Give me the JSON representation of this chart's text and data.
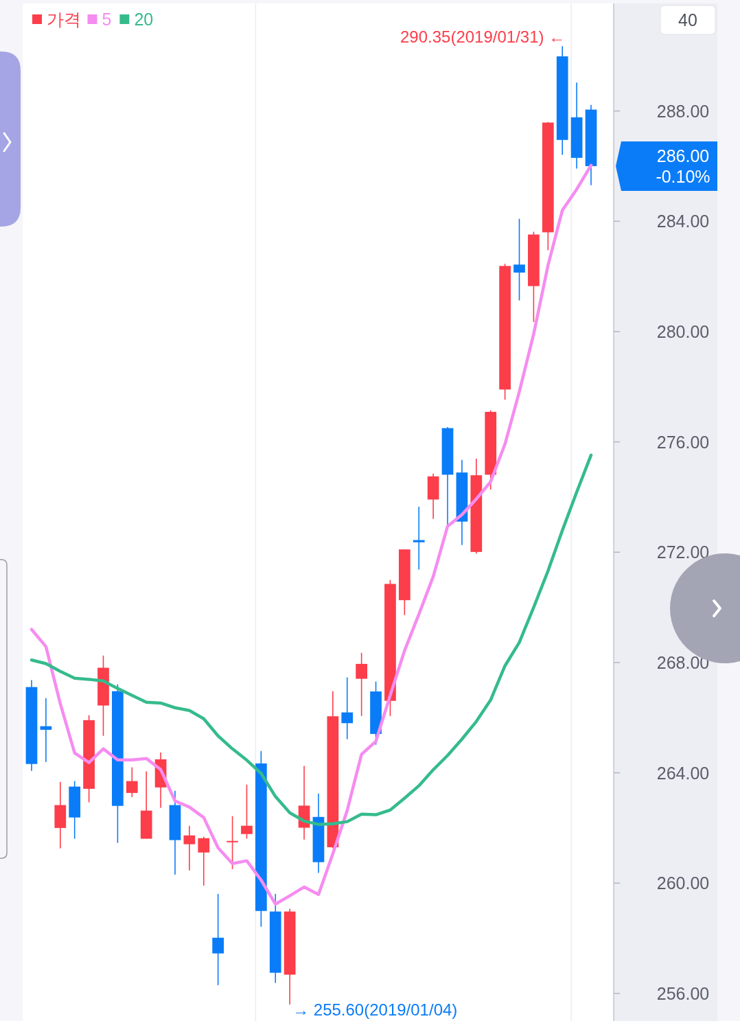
{
  "chart_data": {
    "type": "candlestick",
    "categories": [
      null,
      null,
      null,
      null,
      null,
      null,
      null,
      null,
      null,
      null,
      null,
      null,
      null,
      null,
      null,
      null,
      null,
      null,
      null,
      null,
      null,
      null,
      null,
      null,
      null,
      null,
      null,
      null,
      null,
      null,
      null,
      null,
      null,
      null,
      null,
      null,
      null,
      null,
      null,
      null
    ],
    "series": [
      {
        "name": "가격",
        "color": "#fc3d4a",
        "colors": [
          "#0a7cf8",
          "#0a7cf8",
          "#fc3d4a",
          "#0a7cf8",
          "#fc3d4a",
          "#fc3d4a",
          "#0a7cf8",
          "#fc3d4a",
          "#fc3d4a",
          "#fc3d4a",
          "#0a7cf8",
          "#fc3d4a",
          "#fc3d4a",
          "#0a7cf8",
          "#fc3d4a",
          "#fc3d4a",
          "#0a7cf8",
          "#0a7cf8",
          "#fc3d4a",
          "#fc3d4a",
          "#0a7cf8",
          "#fc3d4a",
          "#0a7cf8",
          "#fc3d4a",
          "#0a7cf8",
          "#fc3d4a",
          "#fc3d4a",
          "#0a7cf8",
          "#fc3d4a",
          "#0a7cf8",
          "#0a7cf8",
          "#fc3d4a",
          "#fc3d4a",
          "#fc3d4a",
          "#0a7cf8",
          "#fc3d4a",
          "#fc3d4a",
          "#0a7cf8",
          "#0a7cf8",
          "#0a7cf8"
        ],
        "ohlc": [
          [
            267.11,
            267.36,
            264.07,
            264.32
          ],
          [
            265.69,
            266.71,
            264.39,
            265.56
          ],
          [
            262.0,
            263.67,
            261.26,
            262.83
          ],
          [
            263.5,
            263.7,
            261.61,
            262.38
          ],
          [
            263.42,
            266.09,
            262.93,
            265.91
          ],
          [
            266.44,
            268.25,
            265.34,
            267.81
          ],
          [
            266.96,
            267.21,
            261.46,
            262.8
          ],
          [
            263.27,
            264.2,
            263.12,
            263.7
          ],
          [
            261.61,
            264.05,
            261.61,
            262.63
          ],
          [
            263.47,
            264.74,
            262.73,
            264.49
          ],
          [
            262.83,
            263.35,
            260.31,
            261.56
          ],
          [
            261.41,
            262.08,
            260.46,
            261.73
          ],
          [
            261.11,
            261.68,
            259.91,
            261.63
          ],
          [
            258.02,
            259.61,
            256.3,
            257.45
          ],
          [
            261.53,
            262.43,
            260.51,
            261.53
          ],
          [
            261.78,
            263.57,
            261.61,
            262.08
          ],
          [
            264.34,
            264.79,
            258.42,
            258.99
          ],
          [
            258.97,
            259.61,
            256.38,
            256.75
          ],
          [
            256.68,
            259.07,
            255.6,
            258.97
          ],
          [
            262.01,
            264.25,
            261.58,
            262.81
          ],
          [
            262.4,
            263.25,
            260.37,
            260.76
          ],
          [
            261.3,
            266.96,
            261.26,
            266.05
          ],
          [
            266.19,
            267.46,
            265.22,
            265.8
          ],
          [
            267.41,
            268.35,
            266.06,
            267.95
          ],
          [
            266.95,
            267.31,
            265.02,
            265.41
          ],
          [
            266.61,
            270.99,
            266.06,
            270.85
          ],
          [
            270.26,
            272.1,
            269.72,
            272.1
          ],
          [
            272.44,
            273.65,
            271.37,
            272.36
          ],
          [
            273.91,
            274.85,
            273.21,
            274.75
          ],
          [
            276.5,
            276.54,
            272.99,
            274.81
          ],
          [
            274.89,
            275.35,
            272.26,
            273.11
          ],
          [
            272.01,
            275.39,
            271.95,
            274.79
          ],
          [
            274.81,
            277.14,
            274.27,
            277.09
          ],
          [
            277.9,
            282.46,
            277.53,
            282.38
          ],
          [
            282.43,
            284.09,
            281.13,
            282.14
          ],
          [
            281.65,
            283.62,
            280.35,
            283.52
          ],
          [
            283.6,
            287.6,
            282.95,
            287.58
          ],
          [
            289.98,
            290.35,
            286.41,
            286.95
          ],
          [
            287.77,
            289.03,
            285.91,
            286.3
          ],
          [
            288.05,
            288.22,
            285.31,
            286.0
          ]
        ]
      },
      {
        "name": "5",
        "type": "line",
        "color": "#f58cf0",
        "values": [
          269.2,
          268.58,
          266.51,
          264.72,
          264.37,
          264.87,
          264.47,
          264.47,
          264.52,
          264.12,
          262.98,
          262.76,
          262.38,
          261.28,
          260.71,
          260.81,
          260.11,
          259.24,
          259.54,
          259.86,
          259.59,
          261.06,
          262.63,
          264.67,
          265.14,
          266.81,
          268.43,
          269.75,
          271.12,
          272.94,
          273.36,
          273.93,
          274.55,
          275.92,
          277.82,
          279.91,
          282.4,
          284.4,
          285.16,
          286.03
        ]
      },
      {
        "name": "20",
        "type": "line",
        "color": "#35bb8c",
        "values": [
          268.09,
          267.96,
          267.68,
          267.43,
          267.39,
          267.33,
          267.06,
          266.81,
          266.56,
          266.53,
          266.36,
          266.26,
          265.96,
          265.34,
          264.87,
          264.46,
          263.98,
          263.14,
          262.55,
          262.25,
          262.13,
          262.15,
          262.23,
          262.5,
          262.48,
          262.65,
          263.08,
          263.53,
          264.11,
          264.63,
          265.22,
          265.86,
          266.64,
          267.88,
          268.73,
          270.0,
          271.32,
          272.79,
          274.18,
          275.52
        ]
      }
    ],
    "ylim": [
      255.0,
      291.9
    ],
    "yticks": [
      {
        "value": 256,
        "label": "256.00"
      },
      {
        "value": 260,
        "label": "260.00"
      },
      {
        "value": 264,
        "label": "264.00"
      },
      {
        "value": 268,
        "label": "268.00"
      },
      {
        "value": 272,
        "label": "272.00"
      },
      {
        "value": 276,
        "label": "276.00"
      },
      {
        "value": 280,
        "label": "280.00"
      },
      {
        "value": 284,
        "label": "284.00"
      },
      {
        "value": 288,
        "label": "288.00"
      }
    ],
    "tick_labels": "y",
    "legend": "top left",
    "annotations": [
      "290.35(2019/01/31) ←",
      "→ 255.60(2019/01/04)",
      "286.00\n-0.10%",
      "40"
    ]
  }
}
